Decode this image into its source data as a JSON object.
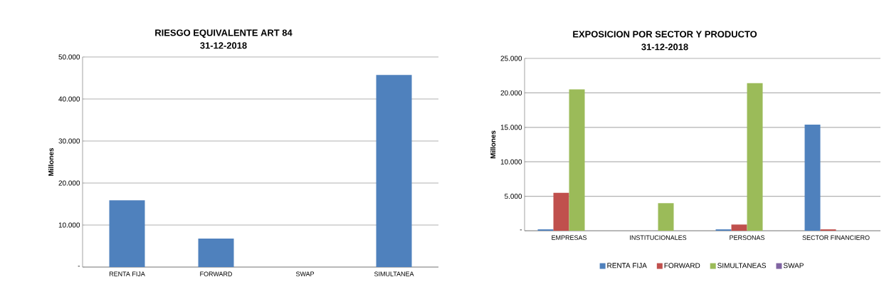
{
  "chart_data": [
    {
      "type": "bar",
      "title": "RIESGO EQUIVALENTE ART 84",
      "subtitle": "31-12-2018",
      "ylabel": "Millones",
      "categories": [
        "RENTA FIJA",
        "FORWARD",
        "SWAP",
        "SIMULTANEA"
      ],
      "values": [
        15900,
        6800,
        0,
        45700
      ],
      "color": "#4f81bd",
      "ylim": [
        0,
        50000
      ],
      "yticks": [
        {
          "value": 0,
          "label": "-"
        },
        {
          "value": 10000,
          "label": "10.000"
        },
        {
          "value": 20000,
          "label": "20.000"
        },
        {
          "value": 30000,
          "label": "30.000"
        },
        {
          "value": 40000,
          "label": "40.000"
        },
        {
          "value": 50000,
          "label": "50.000"
        }
      ],
      "grid": "y",
      "legend": false
    },
    {
      "type": "bar",
      "title": "EXPOSICION POR SECTOR Y PRODUCTO",
      "subtitle": "31-12-2018",
      "ylabel": "Millones",
      "categories": [
        "EMPRESAS",
        "INSTITUCIONALES",
        "PERSONAS",
        "SECTOR FINANCIERO"
      ],
      "series": [
        {
          "name": "RENTA FIJA",
          "color": "#4f81bd",
          "values": [
            200,
            0,
            200,
            15400
          ]
        },
        {
          "name": "FORWARD",
          "color": "#c0504d",
          "values": [
            5500,
            0,
            900,
            200
          ]
        },
        {
          "name": "SIMULTANEAS",
          "color": "#9bbb59",
          "values": [
            20500,
            4000,
            21400,
            0
          ]
        },
        {
          "name": "SWAP",
          "color": "#8064a2",
          "values": [
            0,
            0,
            0,
            0
          ]
        }
      ],
      "ylim": [
        0,
        25000
      ],
      "yticks": [
        {
          "value": 0,
          "label": "-"
        },
        {
          "value": 5000,
          "label": "5.000"
        },
        {
          "value": 10000,
          "label": "10.000"
        },
        {
          "value": 15000,
          "label": "15.000"
        },
        {
          "value": 20000,
          "label": "20.000"
        },
        {
          "value": 25000,
          "label": "25.000"
        }
      ],
      "grid": "y",
      "legend": "bottom"
    }
  ]
}
